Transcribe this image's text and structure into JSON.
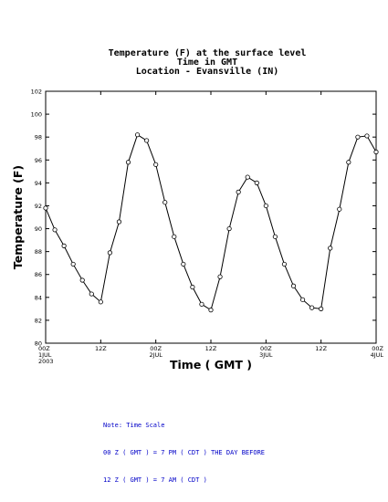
{
  "chart_data": {
    "type": "line",
    "title_lines": [
      "Temperature (F) at the surface level",
      "Time in GMT",
      "Location - Evansville (IN)"
    ],
    "xlabel": "Time ( GMT )",
    "ylabel": "Temperature (F)",
    "ylim": [
      80,
      102
    ],
    "yticks": [
      80,
      82,
      84,
      86,
      88,
      90,
      92,
      94,
      96,
      98,
      100,
      102
    ],
    "xlim": [
      0,
      72
    ],
    "xticks": [
      {
        "t": 0,
        "lines": [
          "00Z",
          "1JUL",
          "2003"
        ]
      },
      {
        "t": 12,
        "lines": [
          "12Z"
        ]
      },
      {
        "t": 24,
        "lines": [
          "00Z",
          "2JUL"
        ]
      },
      {
        "t": 36,
        "lines": [
          "12Z"
        ]
      },
      {
        "t": 48,
        "lines": [
          "00Z",
          "3JUL"
        ]
      },
      {
        "t": 60,
        "lines": [
          "12Z"
        ]
      },
      {
        "t": 72,
        "lines": [
          "00Z",
          "4JUL"
        ]
      }
    ],
    "grid": false,
    "series": [
      {
        "marker": "open-circle",
        "x": [
          0,
          2,
          4,
          6,
          8,
          10,
          12,
          14,
          16,
          18,
          20,
          22,
          24,
          26,
          28,
          30,
          32,
          34,
          36,
          38,
          40,
          42,
          44,
          46,
          48,
          50,
          52,
          54,
          56,
          58,
          60,
          62,
          64,
          66,
          68,
          70,
          72
        ],
        "y": [
          91.8,
          89.9,
          88.5,
          86.9,
          85.5,
          84.3,
          83.6,
          87.9,
          90.6,
          95.8,
          98.2,
          97.7,
          95.6,
          92.3,
          89.3,
          86.9,
          84.9,
          83.4,
          82.9,
          85.8,
          90.0,
          93.2,
          94.5,
          94.0,
          92.0,
          89.3,
          86.9,
          85.0,
          83.8,
          83.1,
          83.0,
          88.3,
          91.7,
          95.8,
          98.0,
          98.1,
          96.7
        ]
      }
    ]
  },
  "note": {
    "lines": [
      "Note: Time Scale",
      "00 Z ( GMT ) = 7 PM ( CDT ) THE DAY BEFORE",
      "12 Z ( GMT ) = 7 AM ( CDT )"
    ]
  }
}
